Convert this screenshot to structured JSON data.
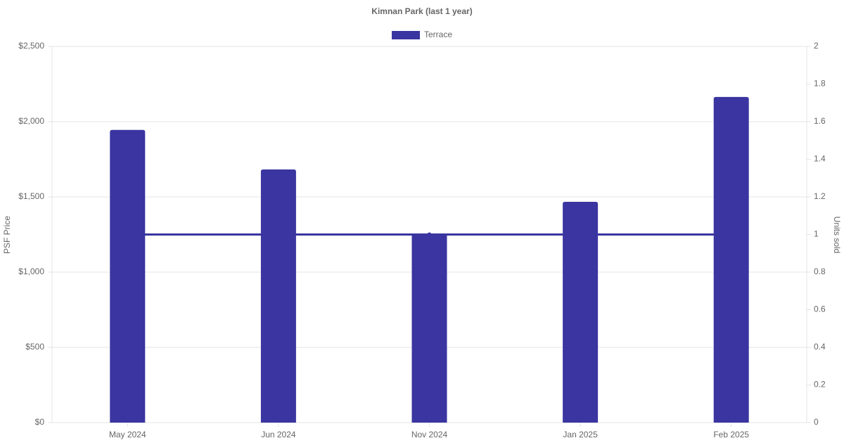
{
  "chart_data": {
    "type": "bar",
    "title": "Kimnan Park (last 1 year)",
    "categories": [
      "May 2024",
      "Jun 2024",
      "Nov 2024",
      "Jan 2025",
      "Feb 2025"
    ],
    "series": [
      {
        "name": "Terrace",
        "color": "#3a35a0",
        "type": "bar",
        "values": [
          1945,
          1682,
          1257,
          1467,
          2164
        ]
      },
      {
        "color": "#3a35a0",
        "type": "line",
        "axis": "y2",
        "values": [
          1,
          1,
          1,
          1,
          1
        ]
      }
    ],
    "y_label": "PSF Price",
    "y2_label": "Units sold",
    "ylim": [
      0,
      2500
    ],
    "yticks": [
      {
        "value": 0,
        "label": "$0"
      },
      {
        "value": 500,
        "label": "$500"
      },
      {
        "value": 1000,
        "label": "$1,000"
      },
      {
        "value": 1500,
        "label": "$1,500"
      },
      {
        "value": 2000,
        "label": "$2,000"
      },
      {
        "value": 2500,
        "label": "$2,500"
      }
    ],
    "y2lim": [
      0,
      2
    ],
    "y2ticks": [
      0,
      0.2,
      0.4,
      0.6,
      0.8,
      1,
      1.2,
      1.4,
      1.6,
      1.8,
      2
    ],
    "grid": true,
    "legend": "top"
  }
}
